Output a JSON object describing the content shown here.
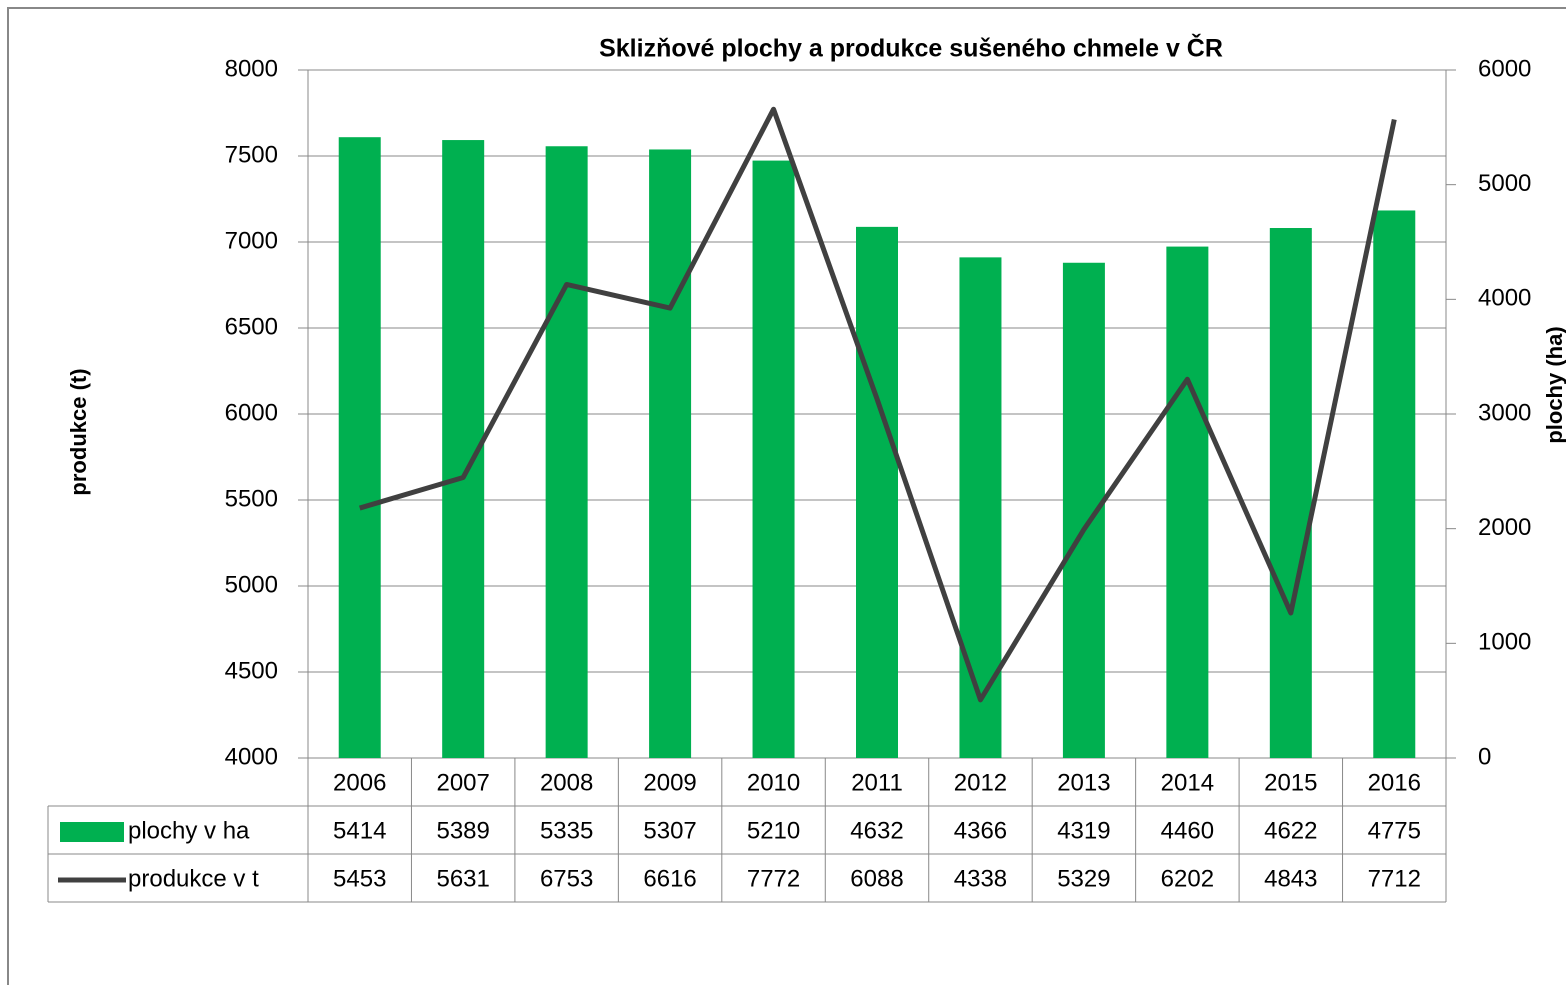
{
  "chart_data": {
    "type": "bar",
    "title": "Sklizňové plochy a produkce sušeného chmele v ČR",
    "y_label": "produkce (t)",
    "y2_label": "plochy (ha)",
    "categories": [
      "2006",
      "2007",
      "2008",
      "2009",
      "2010",
      "2011",
      "2012",
      "2013",
      "2014",
      "2015",
      "2016"
    ],
    "series": [
      {
        "name": "plochy v ha",
        "type": "bar",
        "axis": "y2",
        "color": "#00b050",
        "values": [
          5414,
          5389,
          5335,
          5307,
          5210,
          4632,
          4366,
          4319,
          4460,
          4622,
          4775
        ]
      },
      {
        "name": "produkce v t",
        "type": "line",
        "color": "#404040",
        "values": [
          5453,
          5631,
          6753,
          6616,
          7772,
          6088,
          4338,
          5329,
          6202,
          4843,
          7712
        ]
      }
    ],
    "ylim": [
      4000,
      8000
    ],
    "yticks": [
      4000,
      4500,
      5000,
      5500,
      6000,
      6500,
      7000,
      7500,
      8000
    ],
    "y2lim": [
      0,
      6000
    ],
    "y2ticks": [
      0,
      1000,
      2000,
      3000,
      4000,
      5000,
      6000
    ],
    "grid": true,
    "data_table": true
  }
}
